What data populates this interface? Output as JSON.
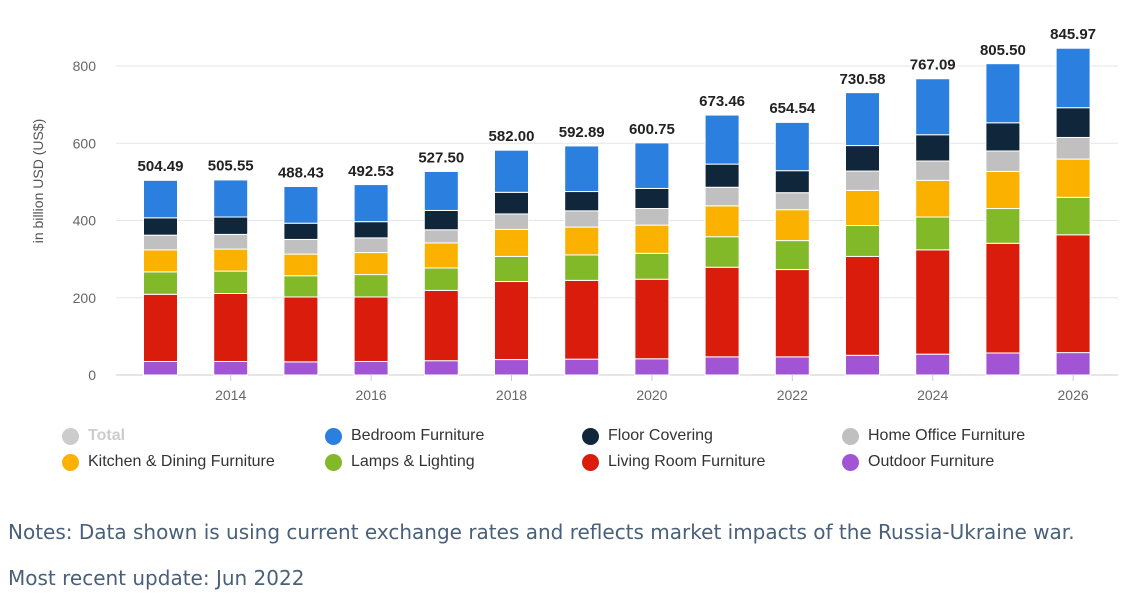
{
  "chart_data": {
    "type": "bar",
    "stacked": true,
    "categories": [
      "2013",
      "2014",
      "2015",
      "2016",
      "2017",
      "2018",
      "2019",
      "2020",
      "2021",
      "2022",
      "2023",
      "2024",
      "2025",
      "2026"
    ],
    "x_tick_labels": [
      "2014",
      "2016",
      "2018",
      "2020",
      "2022",
      "2024",
      "2026"
    ],
    "ylabel": "in billion USD (US$)",
    "ylim": [
      0,
      850
    ],
    "yticks": [
      0,
      200,
      400,
      600,
      800
    ],
    "grid": true,
    "legend_position": "bottom",
    "totals": [
      "504.49",
      "505.55",
      "488.43",
      "492.53",
      "527.50",
      "582.00",
      "592.89",
      "600.75",
      "673.46",
      "654.54",
      "730.58",
      "767.09",
      "805.50",
      "845.97"
    ],
    "series": [
      {
        "name": "Outdoor Furniture",
        "color": "#a155d4",
        "values": [
          35,
          35,
          34,
          35,
          37,
          40,
          41,
          42,
          47,
          47,
          51,
          54,
          57,
          58
        ]
      },
      {
        "name": "Living Room Furniture",
        "color": "#d91c0b",
        "values": [
          174,
          176,
          168,
          167,
          182,
          202,
          204,
          206,
          232,
          226,
          256,
          270,
          284,
          305
        ]
      },
      {
        "name": "Lamps & Lighting",
        "color": "#82b929",
        "values": [
          58,
          58,
          55,
          58,
          58,
          65,
          66,
          67,
          79,
          75,
          80,
          85,
          90,
          97
        ]
      },
      {
        "name": "Kitchen & Dining Furniture",
        "color": "#fbb100",
        "values": [
          57,
          57,
          56,
          57,
          65,
          70,
          72,
          73,
          80,
          80,
          91,
          95,
          96,
          99
        ]
      },
      {
        "name": "Home Office Furniture",
        "color": "#c0c0c0",
        "values": [
          38,
          38,
          38,
          38,
          34,
          40,
          42,
          43,
          48,
          44,
          50,
          50,
          53,
          56
        ]
      },
      {
        "name": "Floor Covering",
        "color": "#10263b",
        "values": [
          45,
          45,
          42,
          42,
          50,
          56,
          50,
          52,
          60,
          57,
          66,
          68,
          73,
          77
        ]
      },
      {
        "name": "Bedroom Furniture",
        "color": "#2b7fde",
        "values": [
          97,
          96,
          95,
          96,
          101,
          109,
          118,
          118,
          127,
          125,
          137,
          145,
          153,
          154
        ]
      }
    ]
  },
  "legend": [
    {
      "label": "Total",
      "color": "#cccccc",
      "hidden": true
    },
    {
      "label": "Bedroom Furniture",
      "color": "#2b7fde",
      "hidden": false
    },
    {
      "label": "Floor Covering",
      "color": "#10263b",
      "hidden": false
    },
    {
      "label": "Home Office Furniture",
      "color": "#c0c0c0",
      "hidden": false
    },
    {
      "label": "Kitchen & Dining Furniture",
      "color": "#fbb100",
      "hidden": false
    },
    {
      "label": "Lamps & Lighting",
      "color": "#82b929",
      "hidden": false
    },
    {
      "label": "Living Room Furniture",
      "color": "#d91c0b",
      "hidden": false
    },
    {
      "label": "Outdoor Furniture",
      "color": "#a155d4",
      "hidden": false
    }
  ],
  "notes": "Notes: Data shown is using current exchange rates and reflects market impacts of the Russia-Ukraine war.",
  "update": "Most recent update: Jun 2022"
}
